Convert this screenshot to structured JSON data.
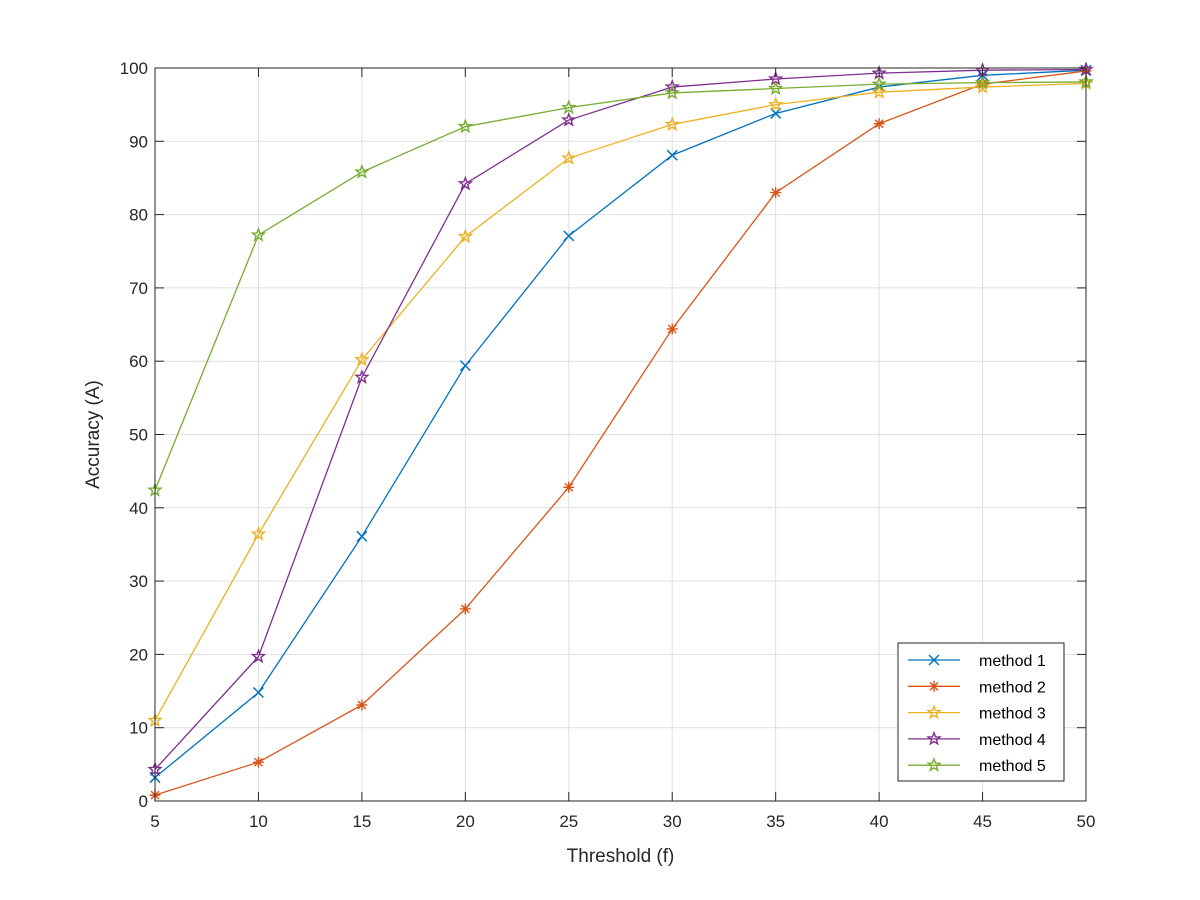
{
  "chart_data": {
    "type": "line",
    "title": "",
    "xlabel": "Threshold (f)",
    "ylabel": "Accuracy (A)",
    "xlim": [
      5,
      50
    ],
    "ylim": [
      0,
      100
    ],
    "xticks": [
      "5",
      "10",
      "15",
      "20",
      "25",
      "30",
      "35",
      "40",
      "45",
      "50"
    ],
    "yticks": [
      "0",
      "10",
      "20",
      "30",
      "40",
      "50",
      "60",
      "70",
      "80",
      "90",
      "100"
    ],
    "grid": true,
    "legend_position": "bottom-right",
    "x": [
      5,
      10,
      15,
      20,
      25,
      30,
      35,
      40,
      45,
      50
    ],
    "series": [
      {
        "name": "method 1",
        "color": "#0072BD",
        "marker": "x",
        "values": [
          3.2,
          14.8,
          36.1,
          59.4,
          77.1,
          88.1,
          93.8,
          97.4,
          99.0,
          99.7
        ]
      },
      {
        "name": "method 2",
        "color": "#D95319",
        "marker": "asterisk",
        "values": [
          0.8,
          5.3,
          13.1,
          26.2,
          42.8,
          64.4,
          83.0,
          92.4,
          97.8,
          99.6
        ]
      },
      {
        "name": "method 3",
        "color": "#EDB120",
        "marker": "star",
        "values": [
          11.0,
          36.4,
          60.2,
          77.0,
          87.7,
          92.3,
          95.0,
          96.7,
          97.4,
          97.9
        ]
      },
      {
        "name": "method 4",
        "color": "#7E2F8E",
        "marker": "star",
        "values": [
          4.3,
          19.7,
          57.8,
          84.2,
          92.9,
          97.4,
          98.5,
          99.3,
          99.7,
          99.8
        ]
      },
      {
        "name": "method 5",
        "color": "#77AC30",
        "marker": "star",
        "values": [
          42.4,
          77.2,
          85.8,
          92.0,
          94.6,
          96.6,
          97.2,
          97.8,
          98.0,
          98.1
        ]
      }
    ]
  }
}
